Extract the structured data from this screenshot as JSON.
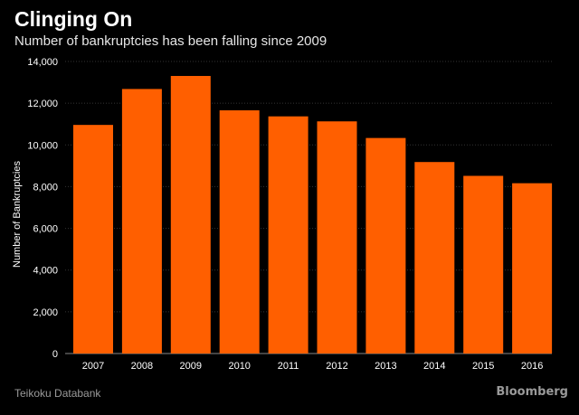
{
  "header": {
    "title": "Clinging On",
    "subtitle": "Number of bankruptcies has been falling since 2009"
  },
  "footer": {
    "source": "Teikoku Databank",
    "brand": "Bloomberg"
  },
  "colors": {
    "bar": "#ff5f00",
    "background": "#000000",
    "grid": "#333333"
  },
  "chart_data": {
    "type": "bar",
    "title": "Clinging On",
    "subtitle": "Number of bankruptcies has been falling since 2009",
    "xlabel": "",
    "ylabel": "Number of Bankruptcies",
    "categories": [
      "2007",
      "2008",
      "2009",
      "2010",
      "2011",
      "2012",
      "2013",
      "2014",
      "2015",
      "2016"
    ],
    "values": [
      10959,
      12681,
      13306,
      11658,
      11369,
      11129,
      10332,
      9180,
      8517,
      8164
    ],
    "ylim": [
      0,
      14000
    ],
    "yticks": [
      0,
      2000,
      4000,
      6000,
      8000,
      10000,
      12000,
      14000
    ],
    "ytick_labels": [
      "0",
      "2,000",
      "4,000",
      "6,000",
      "8,000",
      "10,000",
      "12,000",
      "14,000"
    ],
    "grid": true,
    "legend": "none"
  }
}
